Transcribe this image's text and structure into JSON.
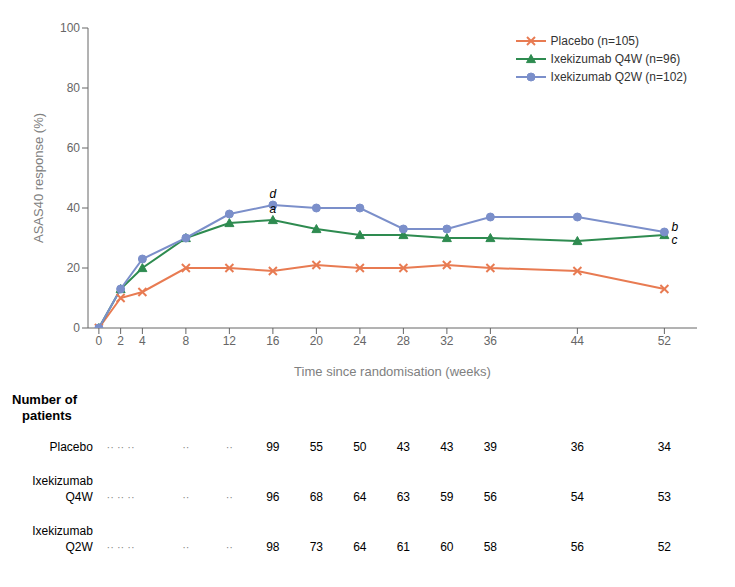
{
  "chart_data": {
    "type": "line",
    "xlabel": "Time since randomisation (weeks)",
    "ylabel": "ASAS40 response (%)",
    "x": [
      0,
      2,
      4,
      8,
      12,
      16,
      20,
      24,
      28,
      32,
      36,
      44,
      52
    ],
    "series": [
      {
        "name": "Placebo (n=105)",
        "color": "#E87B52",
        "marker": "x",
        "values": [
          0,
          10,
          12,
          20,
          20,
          19,
          21,
          20,
          20,
          21,
          20,
          19,
          13
        ]
      },
      {
        "name": "Ixekizumab Q4W (n=96)",
        "color": "#2E8B50",
        "marker": "triangle",
        "values": [
          0,
          13,
          20,
          30,
          35,
          36,
          33,
          31,
          31,
          30,
          30,
          29,
          31
        ]
      },
      {
        "name": "Ixekizumab Q2W (n=102)",
        "color": "#7B8FCA",
        "marker": "circle",
        "values": [
          0,
          13,
          23,
          30,
          38,
          41,
          40,
          40,
          33,
          33,
          37,
          37,
          32
        ]
      }
    ],
    "xlim": [
      -1,
      55
    ],
    "ylim": [
      0,
      100
    ],
    "xticks": [
      0,
      2,
      4,
      8,
      12,
      16,
      20,
      24,
      28,
      32,
      36,
      44,
      52
    ],
    "yticks": [
      0,
      20,
      40,
      60,
      80,
      100
    ],
    "legend": "upper right",
    "annotations": [
      {
        "text": "a",
        "x": 16,
        "y": 37.5,
        "color": "black"
      },
      {
        "text": "d",
        "x": 16,
        "y": 42.5,
        "color": "black"
      },
      {
        "text": "b",
        "x": 52,
        "y": 33.5,
        "color": "black"
      },
      {
        "text": "c",
        "x": 52,
        "y": 29.0,
        "color": "black"
      }
    ],
    "table": {
      "title": [
        "Number of",
        "patients"
      ],
      "x": [
        16,
        20,
        24,
        28,
        32,
        36,
        44,
        52
      ],
      "rows": [
        {
          "label": [
            "Placebo"
          ],
          "values": [
            99,
            55,
            50,
            43,
            43,
            39,
            36,
            34
          ]
        },
        {
          "label": [
            "Ixekizumab",
            "Q4W"
          ],
          "values": [
            96,
            68,
            64,
            63,
            59,
            56,
            54,
            53
          ]
        },
        {
          "label": [
            "Ixekizumab",
            "Q2W"
          ],
          "values": [
            98,
            73,
            64,
            61,
            60,
            58,
            56,
            52
          ]
        }
      ],
      "placeholders": {
        "color": "#888888",
        "marks": [
          {
            "x": 2,
            "text": "·· ·· ··"
          },
          {
            "x": 8,
            "text": "··"
          },
          {
            "x": 12,
            "text": "··"
          }
        ]
      }
    }
  }
}
